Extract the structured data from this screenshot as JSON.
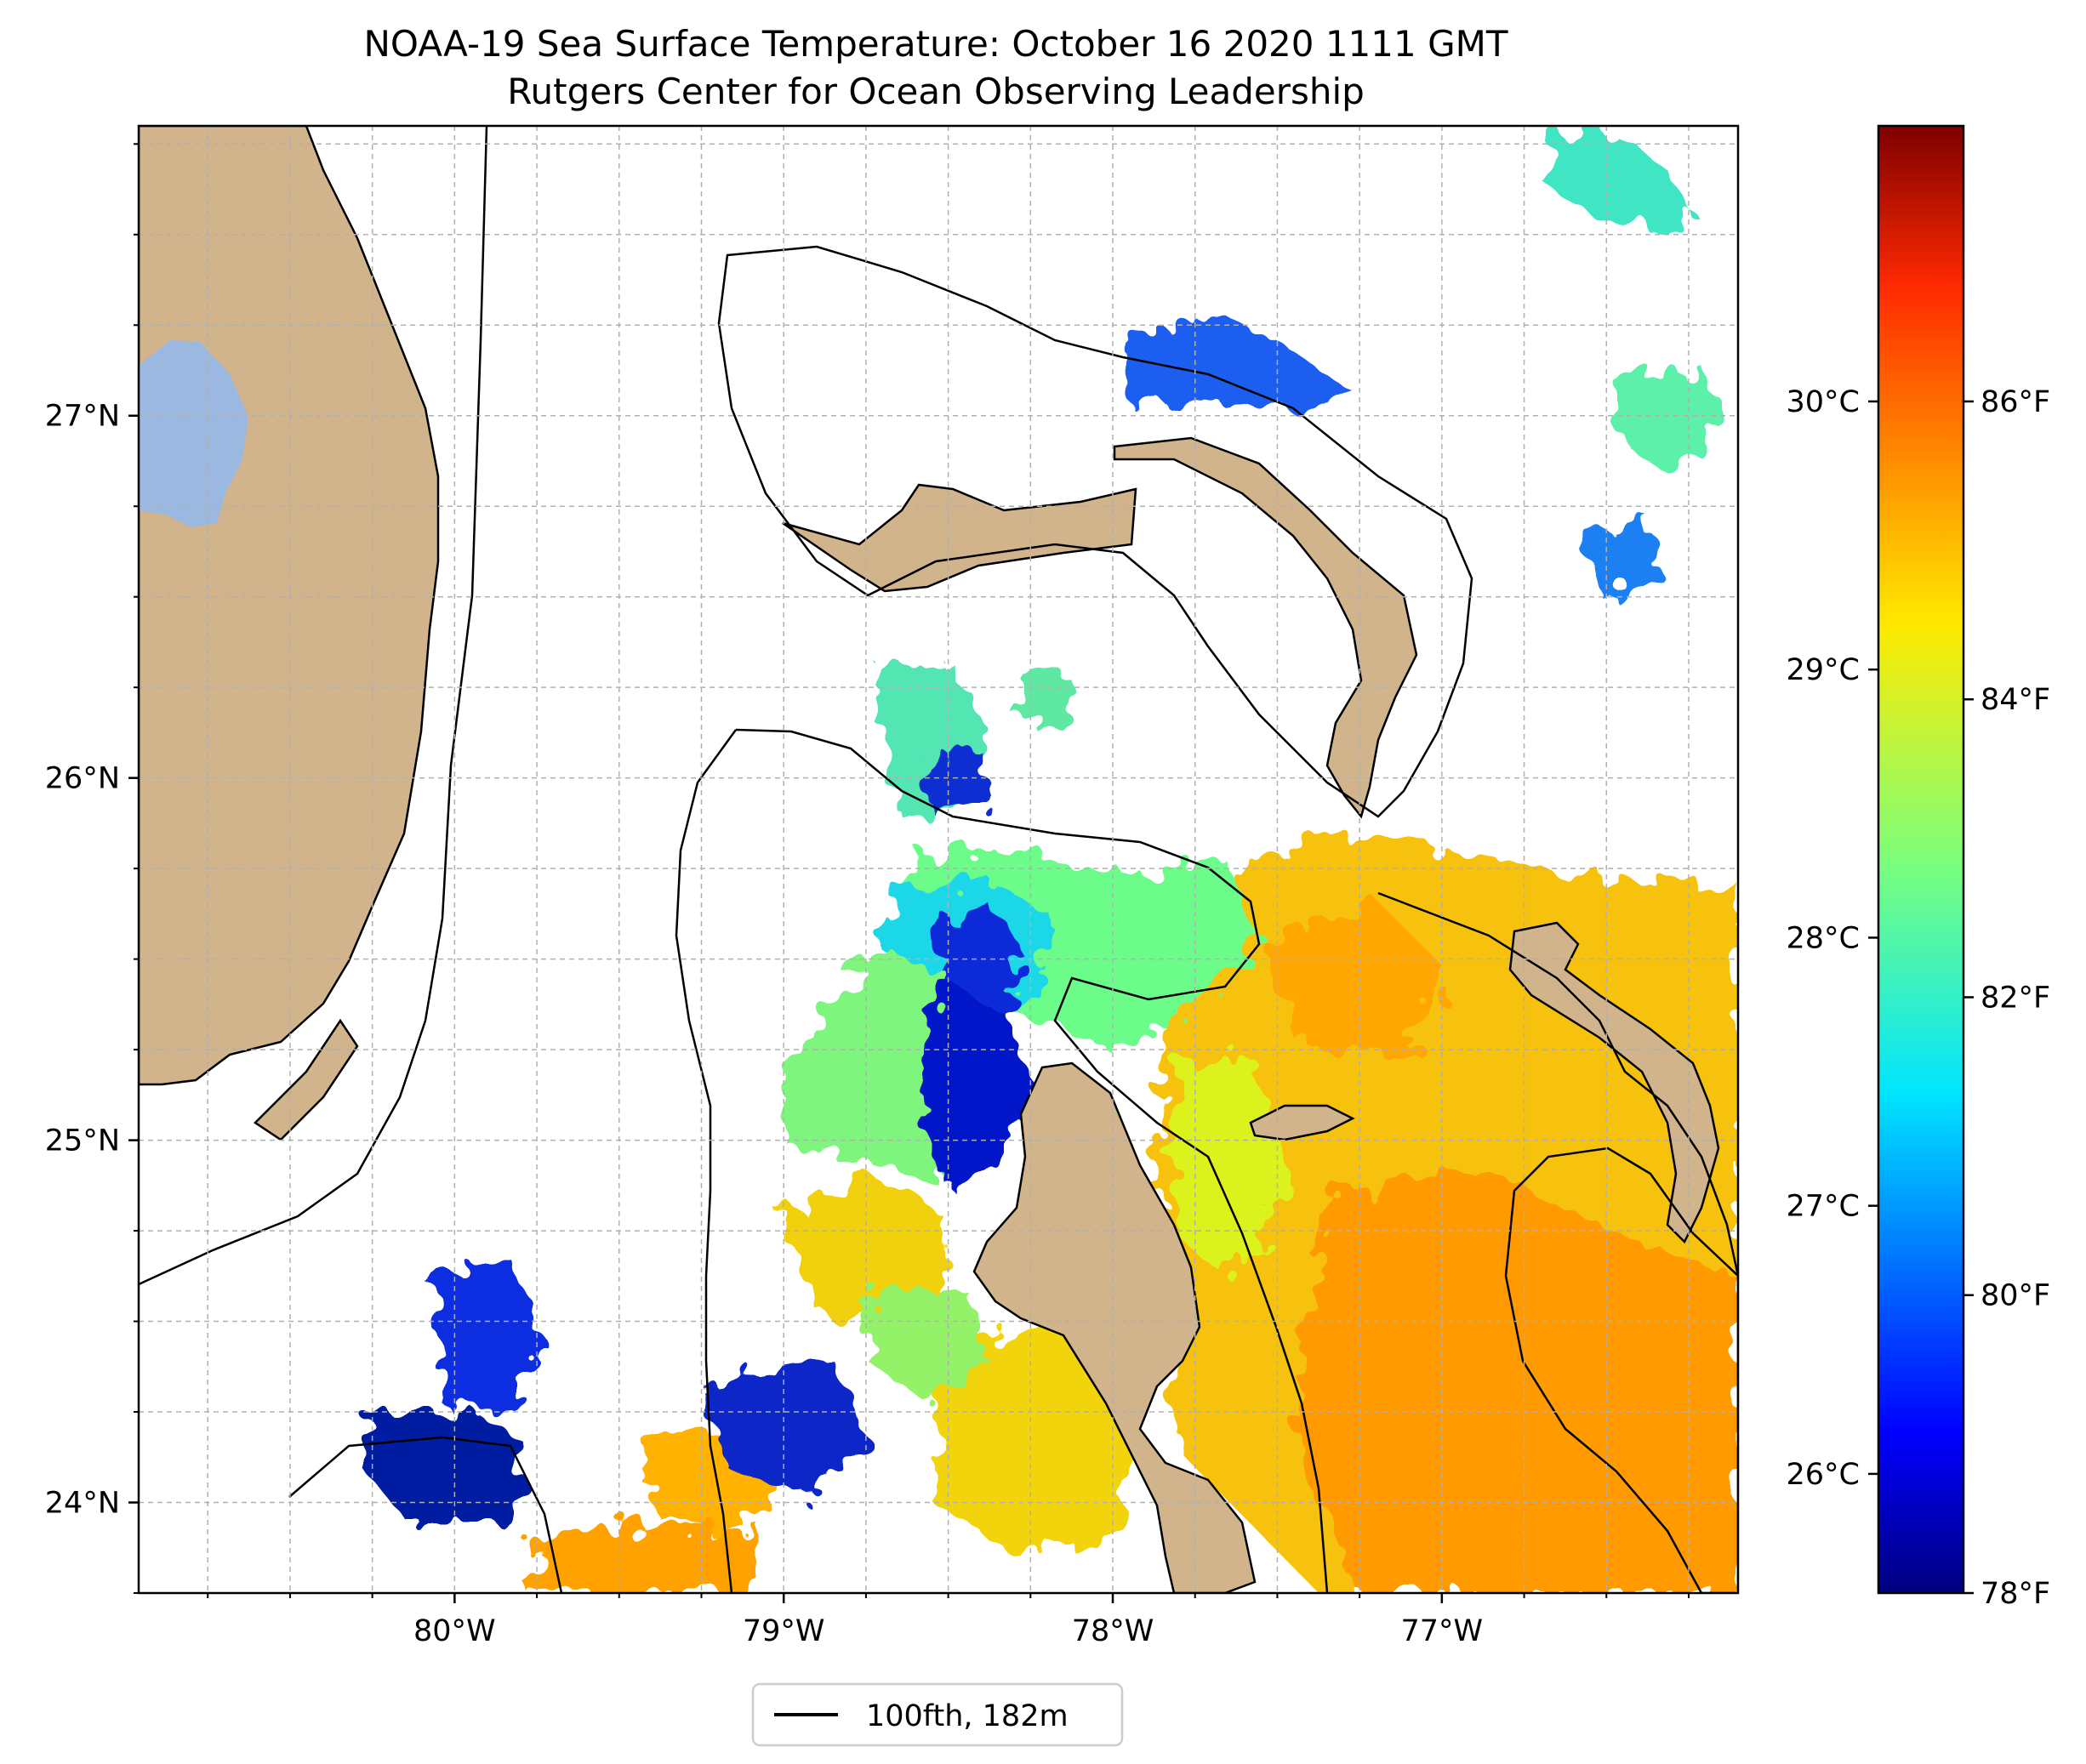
{
  "title": {
    "line1": "NOAA-19 Sea Surface Temperature: October 16 2020 1111 GMT",
    "line2": "Rutgers Center for Ocean Observing Leadership"
  },
  "map": {
    "lon_range": [
      -80.96,
      -76.1
    ],
    "lat_range": [
      23.75,
      27.8
    ],
    "lat_ticks": [
      {
        "value": 27,
        "label": "27°N"
      },
      {
        "value": 26,
        "label": "26°N"
      },
      {
        "value": 25,
        "label": "25°N"
      },
      {
        "value": 24,
        "label": "24°N"
      }
    ],
    "lon_ticks": [
      {
        "value": -80,
        "label": "80°W"
      },
      {
        "value": -79,
        "label": "79°W"
      },
      {
        "value": -78,
        "label": "78°W"
      },
      {
        "value": -77,
        "label": "77°W"
      }
    ],
    "gridlines": true,
    "land_color": "#d2b48c",
    "lake_color": "#9ab8e0"
  },
  "colorbar": {
    "colormap": "jet",
    "celsius_ticks": [
      {
        "value": 26,
        "label": "26°C"
      },
      {
        "value": 27,
        "label": "27°C"
      },
      {
        "value": 28,
        "label": "28°C"
      },
      {
        "value": 29,
        "label": "29°C"
      },
      {
        "value": 30,
        "label": "30°C"
      }
    ],
    "fahrenheit_ticks": [
      {
        "value": 78,
        "label": "78°F"
      },
      {
        "value": 80,
        "label": "80°F"
      },
      {
        "value": 82,
        "label": "82°F"
      },
      {
        "value": 84,
        "label": "84°F"
      },
      {
        "value": 86,
        "label": "86°F"
      }
    ]
  },
  "legend": {
    "label": "100fth, 182m",
    "line_color": "#000000"
  }
}
